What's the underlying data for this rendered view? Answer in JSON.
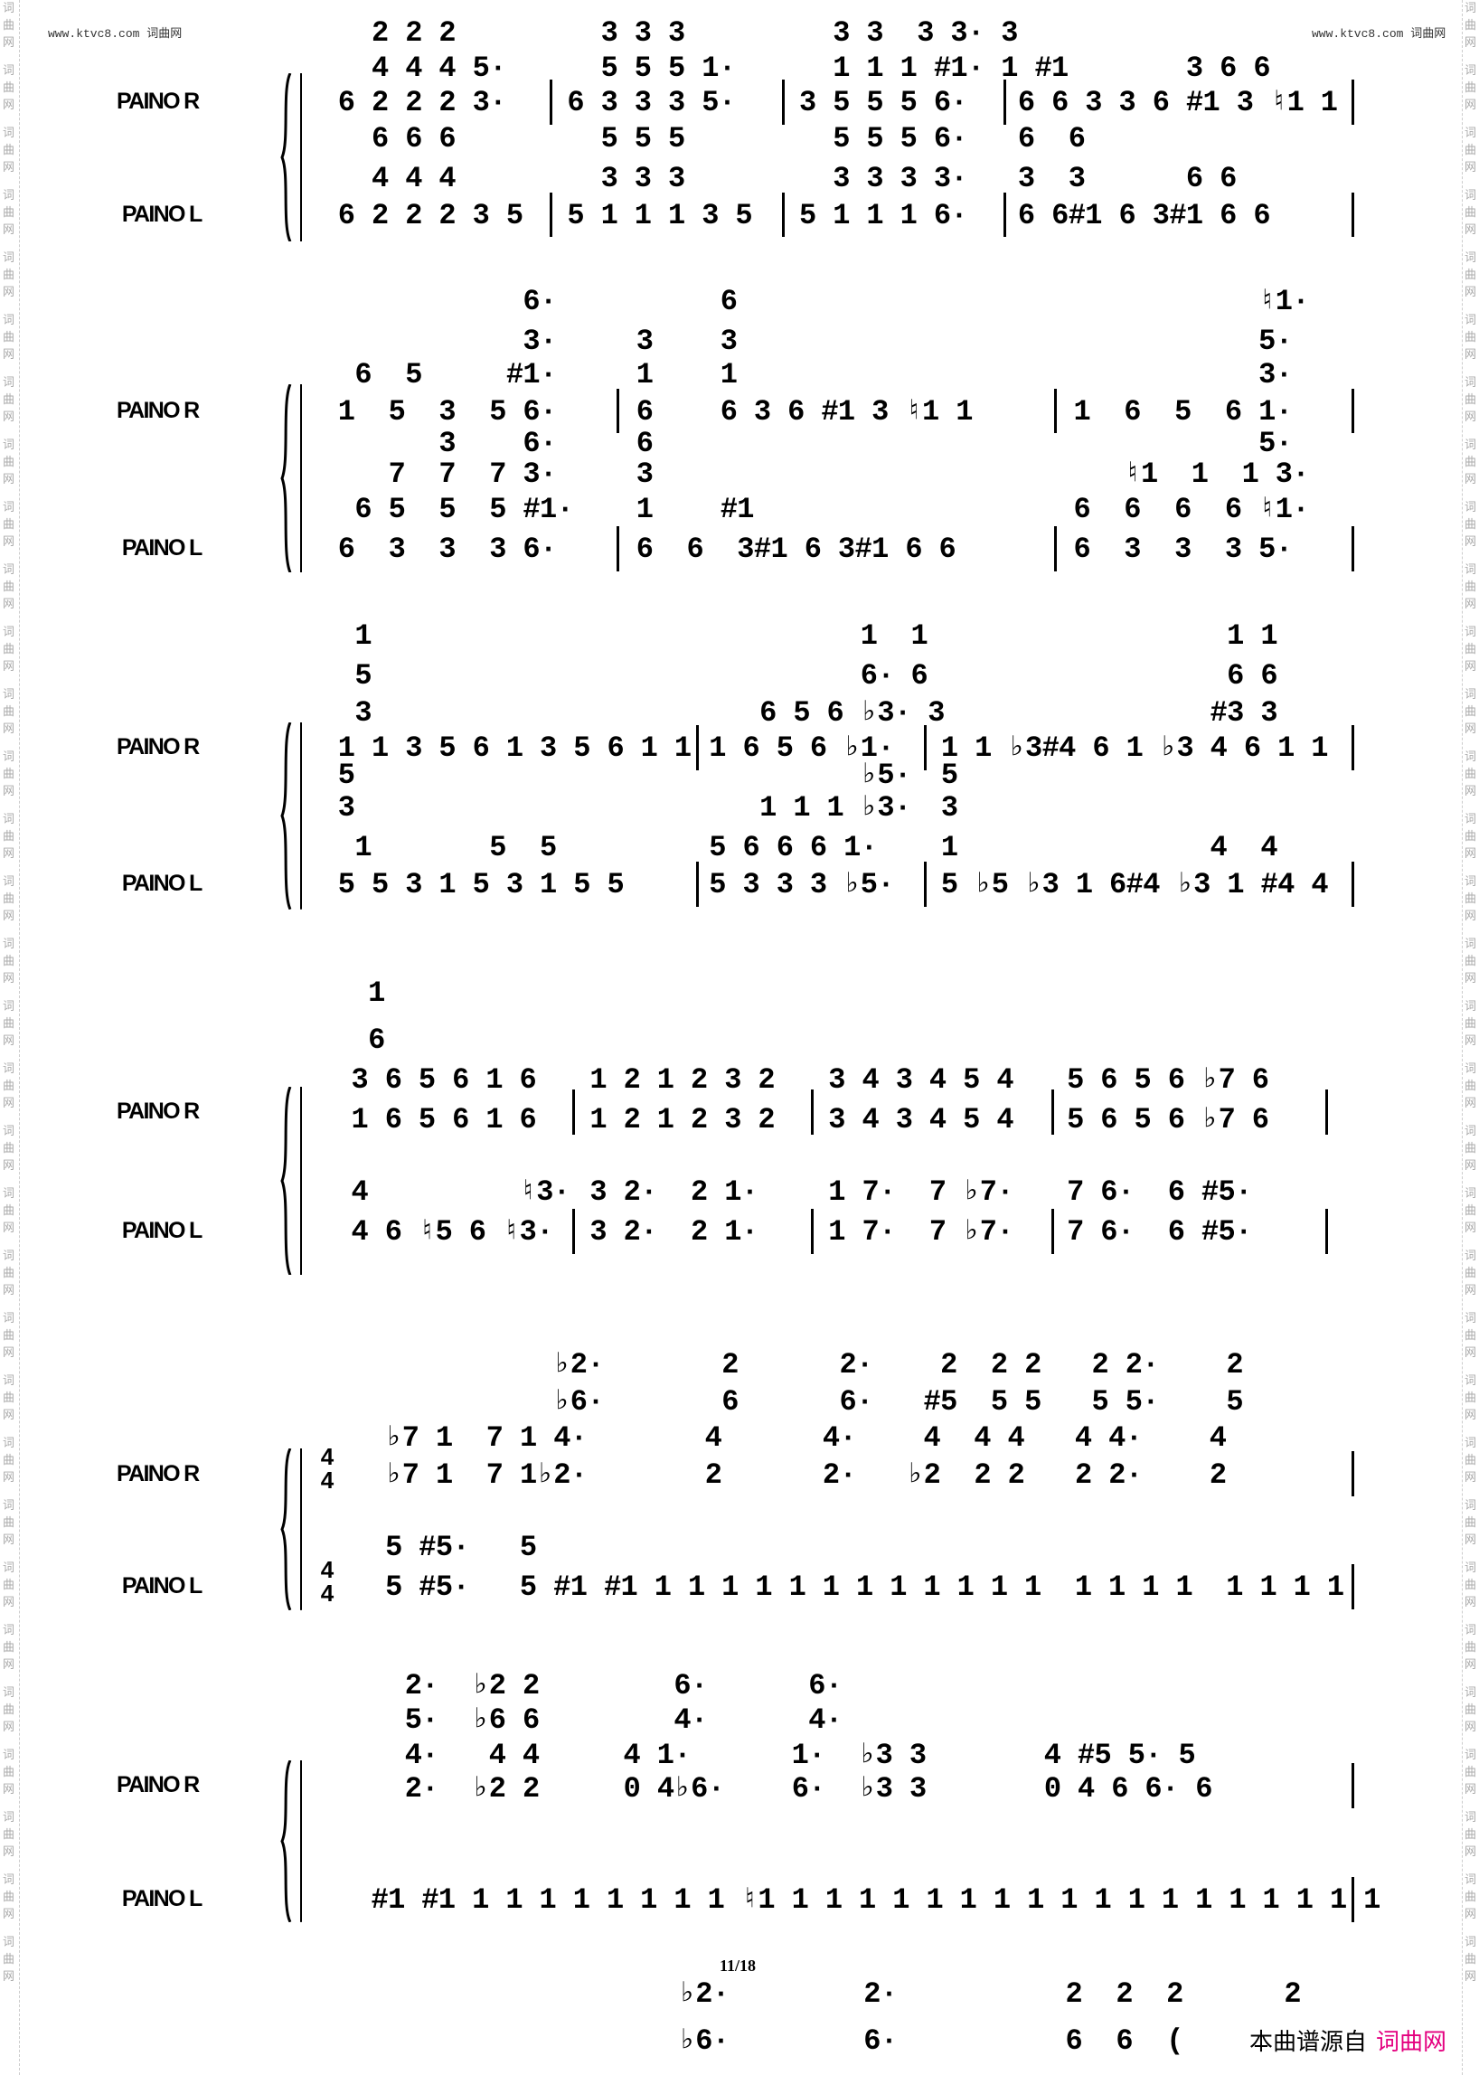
{
  "header": {
    "site_left": "www.ktvc8.com 词曲网",
    "site_right": "www.ktvc8.com 词曲网"
  },
  "side_watermark": "词曲网",
  "staff_labels": {
    "right": "PAINO R",
    "left": "PAINO L"
  },
  "time_signature": {
    "top": "4",
    "bottom": "4"
  },
  "page_number": "11/18",
  "footer": {
    "source_text": "本曲谱源自",
    "site_name": "词曲网",
    "site_color": "#e4007f"
  },
  "systems": [
    {
      "rows": [
        [
          "  2 2 2",
          "  3 3 3",
          "  3 3  3 3· 3",
          ""
        ],
        [
          "  4 4 4 5·",
          "  5 5 5 1·",
          "  1 1 1 #1· 1 #1",
          "          3 6 6"
        ],
        [
          "6 2 2 2 3·",
          "6 3 3 3 5·",
          "3 5 5 5 6·",
          "6 6 3 3 6 #1 3 ♮1 1"
        ],
        [
          "  6 6 6",
          "  5 5 5",
          "  5 5 5 6·",
          "6  6"
        ],
        [
          "  4 4 4",
          "  3 3 3",
          "  3 3 3 3·",
          "3  3      6 6"
        ],
        [
          "6 2 2 2 3 5",
          "5 1 1 1 3 5",
          "5 1 1 1 6·",
          "6 6#1 6 3#1 6 6"
        ]
      ]
    },
    {
      "rows": [
        [
          "           6·",
          "     6",
          "           ♮1·"
        ],
        [
          "           3·",
          "3    3",
          "           5·"
        ],
        [
          " 6  5     #1·",
          "1    1",
          "           3·"
        ],
        [
          "1  5  3  5 6·",
          "6    6 3 6 #1 3 ♮1 1",
          "1  6  5  6 1·"
        ],
        [
          "      3    6·",
          "6",
          "           5·"
        ],
        [
          "   7  7  7 3·",
          "3",
          "   ♮1  1  1 3·"
        ],
        [
          " 6 5  5  5 #1·",
          "1    #1",
          "6  6  6  6 ♮1·"
        ],
        [
          "6  3  3  3 6·",
          "6  6  3#1 6 3#1 6 6",
          "6  3  3  3 5·"
        ]
      ]
    },
    {
      "rows": [
        [
          " 1",
          "         1  1",
          "                 1 1"
        ],
        [
          " 5",
          "         6· 6",
          "                 6 6"
        ],
        [
          " 3",
          "   6 5 6 ♭3· 3",
          "                #3 3"
        ],
        [
          "1 1 3 5 6 1 3 5 6 1 1",
          "1 6 5 6 ♭1·",
          "1 1 ♭3#4 6 1 ♭3 4 6 1 1"
        ],
        [
          "5",
          "         ♭5·",
          "5"
        ],
        [
          "3",
          "   1 1 1 ♭3·",
          "3"
        ],
        [
          " 1       5  5",
          "5 6 6 6 1·",
          "1               4  4"
        ],
        [
          "5 5 3 1 5 3 1 5 5",
          "5 3 3 3 ♭5·",
          "5 ♭5 ♭3 1 6#4 ♭3 1 #4 4"
        ]
      ]
    },
    {
      "rows": [
        [
          " 1",
          "",
          "",
          ""
        ],
        [
          " 6",
          "",
          "",
          ""
        ],
        [
          "3 6 5 6 1 6",
          "1 2 1 2 3 2",
          "3 4 3 4 5 4",
          "5 6 5 6 ♭7 6"
        ],
        [
          "1 6 5 6 1 6",
          "1 2 1 2 3 2",
          "3 4 3 4 5 4",
          "5 6 5 6 ♭7 6"
        ],
        [
          "4         ♮3·",
          "3 2·  2 1·",
          "1 7·  7 ♭7·",
          "7 6·  6 #5·"
        ],
        [
          "4 6 ♮5 6 ♮3·",
          "3 2·  2 1·",
          "1 7·  7 ♭7·",
          "7 6·  6 #5·"
        ]
      ]
    },
    {
      "rows": [
        [
          "           ♭2·       2      2·    2  2 2   2 2·    2"
        ],
        [
          "           ♭6·       6      6·   #5  5 5   5 5·    5"
        ],
        [
          " ♭7 1  7 1 4·       4      4·    4  4 4   4 4·    4"
        ],
        [
          " ♭7 1  7 1♭2·       2      2·   ♭2  2 2   2 2·    2"
        ],
        [
          " 5 #5·   5"
        ],
        [
          " 5 #5·   5 #1 #1 1 1 1 1 1 1 1 1 1 1 1 1  1 1 1 1  1 1 1 1"
        ]
      ]
    },
    {
      "rows": [
        [
          "  2·  ♭2 2        6·      6·"
        ],
        [
          "  5·  ♭6 6        4·      4·"
        ],
        [
          "  4·   4 4     4 1·      1·  ♭3 3       4 #5 5· 5"
        ],
        [
          "  2·  ♭2 2     0 4♭6·    6·  ♭3 3       0 4 6 6· 6"
        ],
        [
          "#1 #1 1 1 1 1 1 1 1 1 ♮1 1 1 1 1 1 1 1 1 1 1 1 1 1 1 1 1 1 1"
        ]
      ]
    },
    {
      "rows": [
        [
          "♭2·        2·          2  2  2      2"
        ],
        [
          "♭6·        6·          6  6  ("
        ]
      ]
    }
  ]
}
